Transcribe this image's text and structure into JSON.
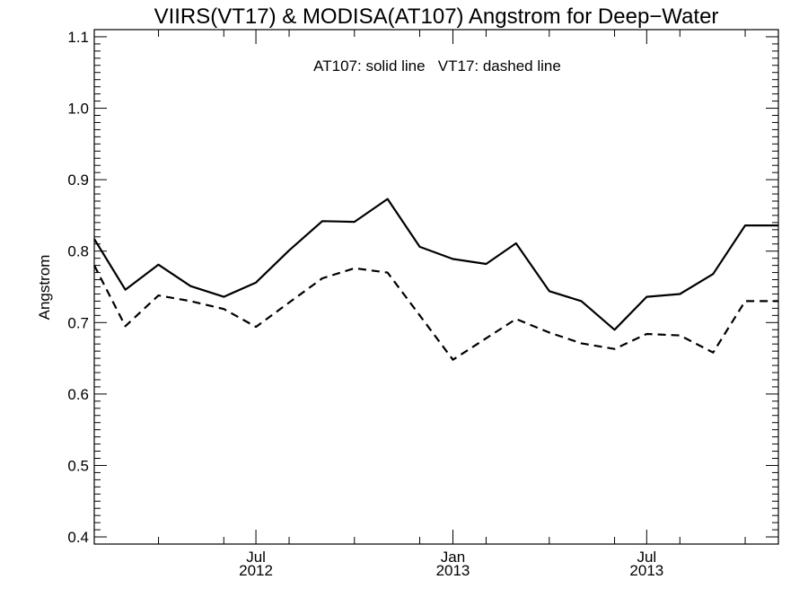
{
  "chart_data": {
    "type": "line",
    "title": "VIIRS(VT17) & MODISA(AT107)  Angstrom for Deep−Water",
    "annotation": "AT107: solid line   VT17: dashed line",
    "xlabel": "",
    "ylabel": "Angstrom",
    "xlim": [
      "2012-02-01",
      "2013-11-01"
    ],
    "ylim": [
      0.39,
      1.11
    ],
    "grid": false,
    "y_ticks": [
      0.4,
      0.5,
      0.6,
      0.7,
      0.8,
      0.9,
      1.0,
      1.1
    ],
    "y_tick_labels": [
      "0.4",
      "0.5",
      "0.6",
      "0.7",
      "0.8",
      "0.9",
      "1.0",
      "1.1"
    ],
    "x_tick_labels": [
      {
        "date": "2012-07-01",
        "line1": "Jul",
        "line2": "2012"
      },
      {
        "date": "2013-01-01",
        "line1": "Jan",
        "line2": "2013"
      },
      {
        "date": "2013-07-01",
        "line1": "Jul",
        "line2": "2013"
      }
    ],
    "series": [
      {
        "name": "AT107",
        "style": "solid",
        "color": "#000000",
        "x": [
          "2012-02-01",
          "2012-03-01",
          "2012-04-01",
          "2012-05-01",
          "2012-06-01",
          "2012-07-01",
          "2012-08-01",
          "2012-09-01",
          "2012-10-01",
          "2012-11-01",
          "2012-12-01",
          "2013-01-01",
          "2013-02-01",
          "2013-03-01",
          "2013-04-01",
          "2013-05-01",
          "2013-06-01",
          "2013-07-01",
          "2013-08-01",
          "2013-09-01",
          "2013-10-01",
          "2013-11-01"
        ],
        "y": [
          0.817,
          0.746,
          0.781,
          0.751,
          0.736,
          0.756,
          0.801,
          0.842,
          0.841,
          0.873,
          0.806,
          0.789,
          0.782,
          0.811,
          0.744,
          0.73,
          0.69,
          0.736,
          0.74,
          0.768,
          0.836,
          0.836
        ]
      },
      {
        "name": "VT17",
        "style": "dashed",
        "color": "#000000",
        "x": [
          "2012-02-01",
          "2012-03-01",
          "2012-04-01",
          "2012-05-01",
          "2012-06-01",
          "2012-07-01",
          "2012-08-01",
          "2012-09-01",
          "2012-10-01",
          "2012-11-01",
          "2012-12-01",
          "2013-01-01",
          "2013-02-01",
          "2013-03-01",
          "2013-04-01",
          "2013-05-01",
          "2013-06-01",
          "2013-07-01",
          "2013-08-01",
          "2013-09-01",
          "2013-10-01",
          "2013-11-01"
        ],
        "y": [
          0.78,
          0.695,
          0.738,
          0.73,
          0.719,
          0.694,
          0.728,
          0.762,
          0.776,
          0.77,
          0.71,
          0.648,
          0.678,
          0.705,
          0.686,
          0.671,
          0.663,
          0.684,
          0.682,
          0.658,
          0.73,
          0.73
        ]
      }
    ]
  }
}
